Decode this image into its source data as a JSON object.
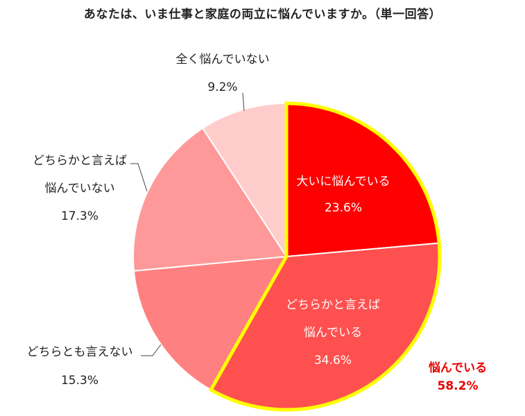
{
  "chart_data": {
    "type": "pie",
    "title": "あなたは、いま仕事と家庭の両立に悩んでいますか。（単一回答）",
    "slices": [
      {
        "label_lines": [
          "大いに悩んでいる"
        ],
        "value": 23.6,
        "display": "23.6%",
        "color": "#ff0000"
      },
      {
        "label_lines": [
          "どちらかと言えば",
          "悩んでいる"
        ],
        "value": 34.6,
        "display": "34.6%",
        "color": "#ff5050"
      },
      {
        "label_lines": [
          "どちらとも言えない"
        ],
        "value": 15.3,
        "display": "15.3%",
        "color": "#ff8080"
      },
      {
        "label_lines": [
          "どちらかと言えば",
          "悩んでいない"
        ],
        "value": 17.3,
        "display": "17.3%",
        "color": "#ff9999"
      },
      {
        "label_lines": [
          "全く悩んでいない"
        ],
        "value": 9.2,
        "display": "9.2%",
        "color": "#ffcccc"
      }
    ],
    "highlight": {
      "label": "悩んでいる",
      "value": "58.2%",
      "outline_color": "#ffff00",
      "text_color": "#e60000"
    }
  }
}
